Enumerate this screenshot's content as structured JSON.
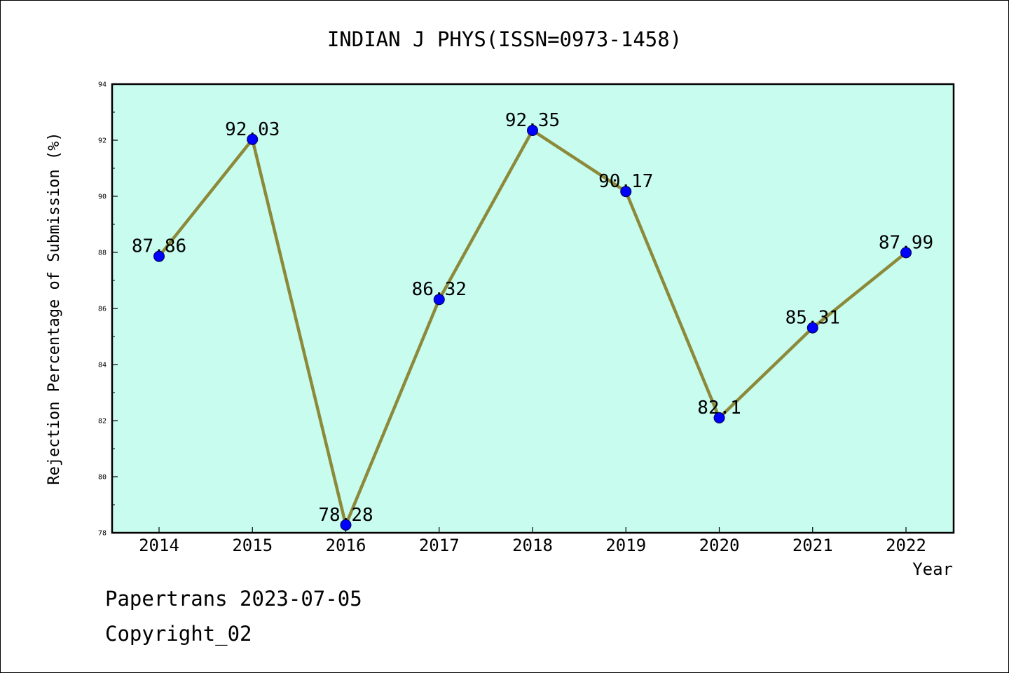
{
  "chart_data": {
    "type": "line",
    "title": "INDIAN J PHYS(ISSN=0973-1458)",
    "xlabel": "Year",
    "ylabel": "Rejection Percentage of Submission (%)",
    "categories": [
      "2014",
      "2015",
      "2016",
      "2017",
      "2018",
      "2019",
      "2020",
      "2021",
      "2022"
    ],
    "values": [
      87.86,
      92.03,
      78.28,
      86.32,
      92.35,
      90.17,
      82.1,
      85.31,
      87.99
    ],
    "data_labels": [
      "87.86",
      "92.03",
      "78.28",
      "86.32",
      "92.35",
      "90.17",
      "82.1",
      "85.31",
      "87.99"
    ],
    "ylim": [
      78,
      94
    ],
    "yticks": [
      "78",
      "80",
      "82",
      "84",
      "86",
      "88",
      "90",
      "92",
      "94"
    ],
    "grid": false,
    "colors": {
      "plot_background": "#c8fcee",
      "line": "#8c8a3a",
      "marker": "#0000ff"
    }
  },
  "footer": {
    "line1": "Papertrans 2023-07-05",
    "line2": "Copyright_02"
  }
}
